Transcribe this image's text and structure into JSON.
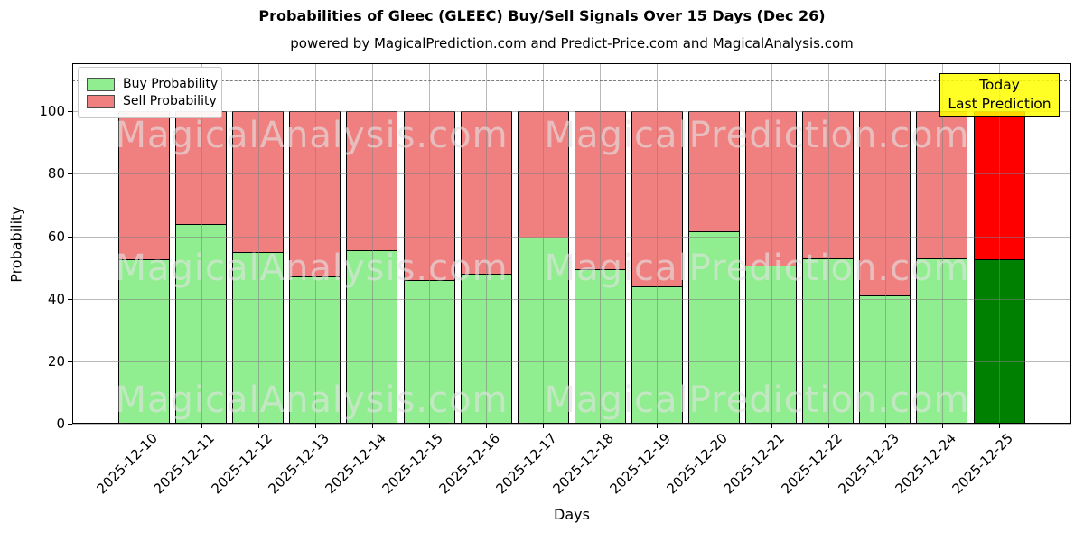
{
  "chart_data": {
    "type": "bar",
    "stacked": true,
    "title": "Probabilities of Gleec (GLEEC) Buy/Sell Signals Over 15 Days (Dec 26)",
    "subtitle": "powered by MagicalPrediction.com and Predict-Price.com and MagicalAnalysis.com",
    "xlabel": "Days",
    "ylabel": "Probability",
    "categories": [
      "2025-12-10",
      "2025-12-11",
      "2025-12-12",
      "2025-12-13",
      "2025-12-14",
      "2025-12-15",
      "2025-12-16",
      "2025-12-17",
      "2025-12-18",
      "2025-12-19",
      "2025-12-20",
      "2025-12-21",
      "2025-12-22",
      "2025-12-23",
      "2025-12-24",
      "2025-12-25"
    ],
    "series": [
      {
        "name": "Buy Probability",
        "color": "#90ee90",
        "values": [
          52.5,
          64,
          55,
          47,
          55.5,
          46,
          48,
          59.5,
          49.5,
          44,
          61.5,
          50.5,
          53,
          41,
          53,
          52.5
        ]
      },
      {
        "name": "Sell Probability",
        "color": "#f08080",
        "values": [
          47.5,
          36,
          45,
          53,
          44.5,
          54,
          52,
          40.5,
          50.5,
          56,
          38.5,
          49.5,
          47,
          59,
          47,
          47.5
        ]
      }
    ],
    "highlight_last_bar": {
      "buy_color": "#008000",
      "sell_color": "#ff0000"
    },
    "ylim": [
      0,
      115.4
    ],
    "yticks": [
      0,
      20,
      40,
      60,
      80,
      100
    ],
    "grid": true,
    "dashed_line_y": 110,
    "legend_position": "upper-left",
    "annotation": {
      "line1": "Today",
      "line2": "Last Prediction",
      "bg_color": "#ffff00"
    },
    "watermarks": {
      "left": "MagicalAnalysis.com",
      "right": "MagicalPrediction.com"
    }
  }
}
